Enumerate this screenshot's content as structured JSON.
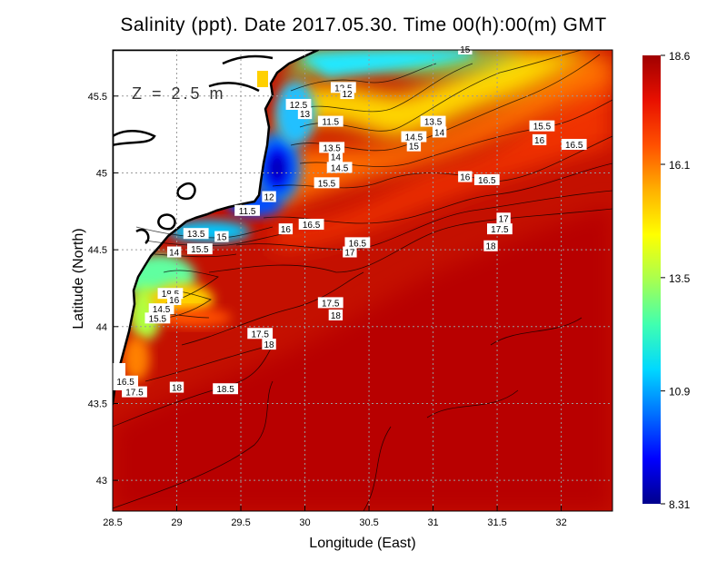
{
  "title": "Salinity (ppt). Date 2017.05.30. Time 00(h):00(m) GMT",
  "depth_label": "Z = 2.5 m",
  "x_axis": {
    "label": "Longitude (East)",
    "range": [
      28.5,
      32.4
    ],
    "ticks": [
      28.5,
      29,
      29.5,
      30,
      30.5,
      31,
      31.5,
      32
    ],
    "tick_labels": [
      "28.5",
      "29",
      "29.5",
      "30",
      "30.5",
      "31",
      "31.5",
      "32"
    ]
  },
  "y_axis": {
    "label": "Latitude (North)",
    "range": [
      42.8,
      45.8
    ],
    "ticks": [
      43,
      43.5,
      44,
      44.5,
      45,
      45.5
    ],
    "tick_labels": [
      "43",
      "43.5",
      "44",
      "44.5",
      "45",
      "45.5"
    ]
  },
  "colorbar": {
    "min": 8.31,
    "max": 18.6,
    "tick_values": [
      18.6,
      16.1,
      13.5,
      10.9,
      8.31
    ],
    "tick_labels": [
      "18.6",
      "16.1",
      "13.5",
      "10.9",
      "8.31"
    ],
    "colors": [
      "#00008c",
      "#0000ff",
      "#0070ff",
      "#00d8ff",
      "#40ffb0",
      "#a8ff50",
      "#ffff00",
      "#ffb000",
      "#ff5000",
      "#e81000",
      "#a00000"
    ]
  },
  "colors": {
    "land": "#ffffff",
    "coastline": "#000000",
    "grid": "#9a9a9a"
  },
  "contour_labels": [
    {
      "text": "12.5",
      "lon": 30.3,
      "lat": 45.55
    },
    {
      "text": "12",
      "lon": 30.33,
      "lat": 45.51
    },
    {
      "text": "12.5",
      "lon": 29.95,
      "lat": 45.44
    },
    {
      "text": "13",
      "lon": 30.0,
      "lat": 45.38
    },
    {
      "text": "11.5",
      "lon": 30.2,
      "lat": 45.33
    },
    {
      "text": "13.5",
      "lon": 30.21,
      "lat": 45.16
    },
    {
      "text": "14",
      "lon": 30.24,
      "lat": 45.1
    },
    {
      "text": "14.5",
      "lon": 30.27,
      "lat": 45.03
    },
    {
      "text": "15.5",
      "lon": 30.17,
      "lat": 44.93
    },
    {
      "text": "12",
      "lon": 29.72,
      "lat": 44.84
    },
    {
      "text": "11.5",
      "lon": 29.55,
      "lat": 44.75
    },
    {
      "text": "16",
      "lon": 29.85,
      "lat": 44.63
    },
    {
      "text": "16.5",
      "lon": 30.05,
      "lat": 44.66
    },
    {
      "text": "13.5",
      "lon": 31.0,
      "lat": 45.33
    },
    {
      "text": "14",
      "lon": 31.05,
      "lat": 45.26
    },
    {
      "text": "14.5",
      "lon": 30.85,
      "lat": 45.23
    },
    {
      "text": "15",
      "lon": 30.85,
      "lat": 45.17
    },
    {
      "text": "15.5",
      "lon": 31.85,
      "lat": 45.3
    },
    {
      "text": "16",
      "lon": 31.83,
      "lat": 45.21
    },
    {
      "text": "16.5",
      "lon": 32.1,
      "lat": 45.18
    },
    {
      "text": "16",
      "lon": 31.25,
      "lat": 44.97
    },
    {
      "text": "16.5",
      "lon": 31.42,
      "lat": 44.95
    },
    {
      "text": "17",
      "lon": 31.55,
      "lat": 44.7
    },
    {
      "text": "17.5",
      "lon": 31.52,
      "lat": 44.63
    },
    {
      "text": "18",
      "lon": 31.45,
      "lat": 44.52
    },
    {
      "text": "16.5",
      "lon": 30.41,
      "lat": 44.54
    },
    {
      "text": "17",
      "lon": 30.35,
      "lat": 44.48
    },
    {
      "text": "13.5",
      "lon": 29.15,
      "lat": 44.6
    },
    {
      "text": "15",
      "lon": 29.35,
      "lat": 44.58
    },
    {
      "text": "14",
      "lon": 28.98,
      "lat": 44.48
    },
    {
      "text": "15.5",
      "lon": 29.18,
      "lat": 44.5
    },
    {
      "text": "18.5",
      "lon": 28.95,
      "lat": 44.21
    },
    {
      "text": "16",
      "lon": 28.98,
      "lat": 44.17
    },
    {
      "text": "14.5",
      "lon": 28.88,
      "lat": 44.11
    },
    {
      "text": "15.5",
      "lon": 28.85,
      "lat": 44.05
    },
    {
      "text": "17.5",
      "lon": 30.2,
      "lat": 44.15
    },
    {
      "text": "18",
      "lon": 30.24,
      "lat": 44.07
    },
    {
      "text": "17.5",
      "lon": 29.65,
      "lat": 43.95
    },
    {
      "text": "18",
      "lon": 29.72,
      "lat": 43.88
    },
    {
      "text": "16.5",
      "lon": 28.6,
      "lat": 43.64
    },
    {
      "text": "17.5",
      "lon": 28.67,
      "lat": 43.57
    },
    {
      "text": "18",
      "lon": 29.0,
      "lat": 43.6
    },
    {
      "text": "18.5",
      "lon": 29.38,
      "lat": 43.59
    },
    {
      "text": "15",
      "lon": 31.25,
      "lat": 45.8
    }
  ]
}
